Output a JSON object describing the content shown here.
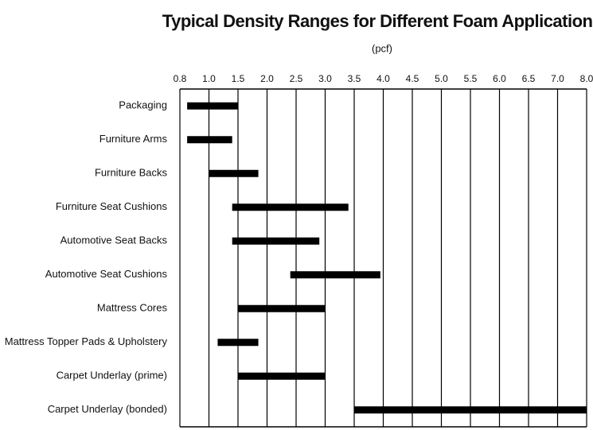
{
  "chart_data": {
    "type": "range_bar",
    "title": "Typical Density Ranges for Different Foam Applications",
    "subtitle": "(pcf)",
    "categories": [
      "Packaging",
      "Furniture Arms",
      "Furniture Backs",
      "Furniture Seat Cushions",
      "Automotive Seat Backs",
      "Automotive Seat Cushions",
      "Mattress Cores",
      "Mattress Topper Pads & Upholstery",
      "Carpet Underlay (prime)",
      "Carpet Underlay (bonded)"
    ],
    "low": [
      0.85,
      0.85,
      1.0,
      1.4,
      1.4,
      2.4,
      1.5,
      1.15,
      1.5,
      3.5
    ],
    "high": [
      1.5,
      1.4,
      1.85,
      3.4,
      2.9,
      3.95,
      3.0,
      1.85,
      3.0,
      8.0
    ],
    "color": "#000000",
    "xlim": [
      0.8,
      8.0
    ],
    "xticks": [
      0.8,
      {
        "value": 1,
        "label": "1.0"
      },
      1.5,
      {
        "value": 2,
        "label": "2.0"
      },
      2.5,
      {
        "value": 3,
        "label": "3.0"
      },
      3.5,
      {
        "value": 4,
        "label": "4.0"
      },
      4.5,
      {
        "value": 5,
        "label": "5.0"
      },
      5.5,
      {
        "value": 6,
        "label": "6.0"
      },
      6.5,
      {
        "value": 7,
        "label": "7.0"
      },
      {
        "value": 8,
        "label": "8.0"
      }
    ],
    "grid": true
  }
}
